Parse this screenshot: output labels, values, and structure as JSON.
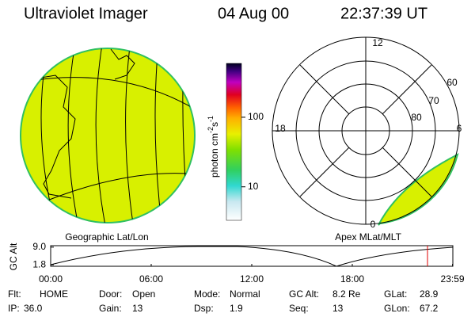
{
  "header": {
    "title": "Ultraviolet Imager",
    "date": "04 Aug 00",
    "time": "22:37:39 UT"
  },
  "colorbar": {
    "unit": "photon cm",
    "unit_exp1": "-2",
    "unit_s": "s",
    "unit_exp2": "-1",
    "scale": "log",
    "clim": [
      3.3,
      594
    ],
    "ticks": [
      10,
      100
    ]
  },
  "polar": {
    "mlt_labels": [
      "12",
      "6",
      "0",
      "18"
    ],
    "lat_labels": [
      "60",
      "70",
      "80"
    ]
  },
  "panel_labels": {
    "left": "Geographic Lat/Lon",
    "right": "Apex MLat/MLT"
  },
  "timeline": {
    "ylabel": "GC Alt",
    "xlim": [
      0,
      24
    ],
    "xticks": [
      {
        "value": 0,
        "label": "00:00"
      },
      {
        "value": 6,
        "label": "06:00"
      },
      {
        "value": 12,
        "label": "12:00"
      },
      {
        "value": 18,
        "label": "18:00"
      },
      {
        "value": 23.98,
        "label": "23:59"
      }
    ],
    "ylim": [
      1.2,
      9.6
    ],
    "yticks": [
      {
        "value": 9,
        "label": "9.0"
      },
      {
        "value": 1.8,
        "label": "1.8"
      }
    ]
  },
  "status": [
    [
      {
        "label": "Flt:",
        "value": "HOME"
      },
      {
        "label": "Door:",
        "value": "Open"
      },
      {
        "label": "Mode:",
        "value": "Normal"
      },
      {
        "label": "GC Alt:",
        "value": "8.2 Re"
      },
      {
        "label": "GLat:",
        "value": "28.9"
      }
    ],
    [
      {
        "label": "IP:",
        "value": "36.0"
      },
      {
        "label": "Gain:",
        "value": "13"
      },
      {
        "label": "Dsp:",
        "value": "1.9"
      },
      {
        "label": "Seq:",
        "value": "13"
      },
      {
        "label": "GLon:",
        "value": "67.2"
      }
    ]
  ]
}
